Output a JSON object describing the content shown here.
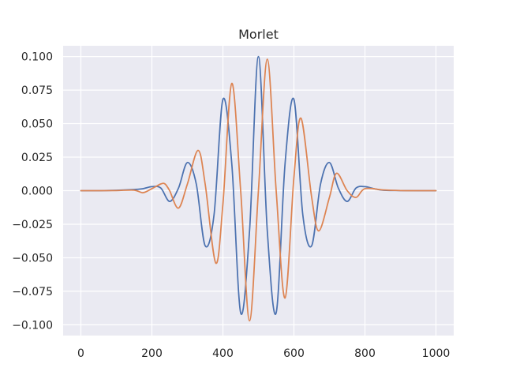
{
  "chart_data": {
    "type": "line",
    "title": "Morlet",
    "xlabel": "",
    "ylabel": "",
    "xlim": [
      -50,
      1050
    ],
    "ylim": [
      -0.108,
      0.108
    ],
    "x_ticks": [
      0,
      200,
      400,
      600,
      800,
      1000
    ],
    "x_tick_labels": [
      "0",
      "200",
      "400",
      "600",
      "800",
      "1000"
    ],
    "y_ticks": [
      0.1,
      0.075,
      0.05,
      0.025,
      0.0,
      -0.025,
      -0.05,
      -0.075,
      -0.1
    ],
    "y_tick_labels": [
      "0.100",
      "0.075",
      "0.050",
      "0.025",
      "0.000",
      "−0.025",
      "−0.050",
      "−0.075",
      "−0.100"
    ],
    "grid": true,
    "legend": "none",
    "colors": {
      "background": "#eaeaf2",
      "grid": "#ffffff",
      "series_real": "#4c72b0",
      "series_imag": "#dd8452"
    },
    "series": [
      {
        "color": "#4c72b0",
        "x": [
          0,
          50,
          100,
          150,
          175,
          200,
          225,
          250,
          275,
          300,
          325,
          350,
          375,
          400,
          425,
          450,
          475,
          500,
          525,
          550,
          575,
          600,
          625,
          650,
          675,
          700,
          725,
          750,
          775,
          800,
          825,
          850,
          900,
          950,
          1000
        ],
        "y": [
          0,
          0,
          0.0003,
          0.0009,
          0.0015,
          0.003,
          0.002,
          -0.008,
          0.002,
          0.021,
          0.005,
          -0.041,
          -0.018,
          0.068,
          0.02,
          -0.091,
          -0.03,
          0.1,
          -0.03,
          -0.091,
          0.02,
          0.068,
          -0.018,
          -0.041,
          0.005,
          0.021,
          0.002,
          -0.008,
          0.002,
          0.003,
          0.0015,
          0.0004,
          0.0001,
          0,
          0
        ]
      },
      {
        "color": "#dd8452",
        "x": [
          0,
          50,
          100,
          150,
          175,
          200,
          225,
          237,
          250,
          275,
          300,
          330,
          350,
          380,
          400,
          425,
          450,
          475,
          500,
          525,
          550,
          575,
          600,
          620,
          650,
          670,
          700,
          720,
          750,
          775,
          800,
          850,
          900,
          950,
          1000
        ],
        "y": [
          0,
          0,
          0.0001,
          0.0004,
          -0.0015,
          0.0015,
          0.005,
          0.005,
          0,
          -0.013,
          0.005,
          0.03,
          0.005,
          -0.054,
          -0.01,
          0.08,
          0,
          -0.097,
          0,
          0.098,
          0,
          -0.08,
          0.01,
          0.054,
          -0.005,
          -0.03,
          -0.005,
          0.013,
          0,
          -0.005,
          0.0015,
          0.0006,
          0.0001,
          0,
          0
        ]
      }
    ]
  }
}
